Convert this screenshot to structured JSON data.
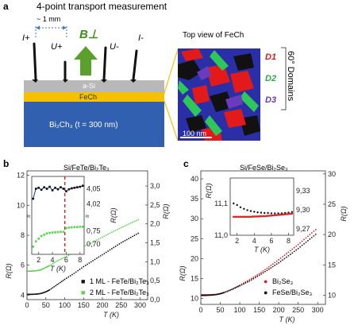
{
  "panel_a": {
    "label": "a",
    "title": "4-point transport measurement",
    "spacing": "~ 1 mm",
    "probes": [
      "I+",
      "U+",
      "U-",
      "I-"
    ],
    "field": "B⊥",
    "layers": [
      "a-Si",
      "FeCh",
      "Bi₂Ch₃ (t = 300 nm)"
    ],
    "top_view_title": "Top view of FeCh",
    "scale_bar": "100 nm",
    "domains": [
      "D1",
      "D2",
      "D3"
    ],
    "domain_note": "60° Domains",
    "colors": {
      "substrate": "#3060b0",
      "fech": "#f5c000",
      "asi": "#b8b8b8",
      "arrow": "#5aa02c",
      "d1": "#e21a1a",
      "d2": "#2ec85a",
      "d3": "#6a3bbd"
    }
  },
  "panel_b": {
    "label": "b",
    "title": "Si/FeTe/Bi₂Te₃"
  },
  "panel_c": {
    "label": "c",
    "title": "Si/FeSe/Bi₂Se₃"
  },
  "chart_data": [
    {
      "type": "scatter",
      "title": "Si/FeTe/Bi₂Te₃",
      "xlabel": "T (K)",
      "ylabel": "R(Ω)",
      "y2label": "R(Ω)",
      "xlim": [
        0,
        320
      ],
      "ylim": [
        3.7,
        12.3
      ],
      "y2lim": [
        0.0,
        3.4
      ],
      "xticks": [
        0,
        50,
        100,
        150,
        200,
        250,
        300
      ],
      "yticks": [
        4,
        6,
        8,
        10,
        12
      ],
      "y2ticks": [
        "0,0",
        "0,5",
        "1,0",
        "1,5",
        "2,0",
        "2,5",
        "3,0"
      ],
      "legend_position": "bottom-right",
      "series": [
        {
          "name": "1 ML - FeTe/Bi₂Te₃",
          "color": "#111111",
          "axis": "left",
          "x": [
            2,
            10,
            20,
            30,
            40,
            50,
            60,
            80,
            100,
            125,
            150,
            175,
            200,
            225,
            250,
            275,
            300
          ],
          "y": [
            4.05,
            4.05,
            4.06,
            4.08,
            4.13,
            4.22,
            4.35,
            4.7,
            5.05,
            5.45,
            5.9,
            6.3,
            6.7,
            7.1,
            7.5,
            7.85,
            8.2
          ]
        },
        {
          "name": "2 ML - FeTe/Bi₂Te₃",
          "color": "#55d84a",
          "axis": "right",
          "x": [
            2,
            10,
            20,
            30,
            40,
            50,
            60,
            80,
            100,
            125,
            150,
            175,
            200,
            225,
            250,
            275,
            300
          ],
          "y": [
            0.75,
            0.75,
            0.76,
            0.77,
            0.8,
            0.85,
            0.9,
            1.02,
            1.12,
            1.25,
            1.4,
            1.52,
            1.65,
            1.78,
            1.9,
            2.02,
            2.13
          ]
        }
      ],
      "inset": {
        "xlabel": "T (K)",
        "ylabel_right": "R(Ω)",
        "xlim": [
          1,
          8.6
        ],
        "xticks": [
          2,
          4,
          6,
          8
        ],
        "dashed_line_x": 5.8,
        "yticks_top": [
          "4,05",
          "4,02"
        ],
        "yticks_bottom": [
          "0,75",
          "0,70"
        ],
        "series": [
          {
            "name": "1 ML",
            "x": [
              1.2,
              1.6,
              2.0,
              2.4,
              2.8,
              3.2,
              3.6,
              4.0,
              4.4,
              4.8,
              5.2,
              5.6,
              6.0,
              6.4,
              6.8,
              7.2,
              7.6,
              8.0,
              8.4
            ],
            "y": [
              4.03,
              4.05,
              4.052,
              4.048,
              4.053,
              4.05,
              4.054,
              4.047,
              4.052,
              4.049,
              4.053,
              4.05,
              4.045,
              4.049,
              4.051,
              4.052,
              4.053,
              4.054,
              4.056
            ]
          },
          {
            "name": "2 ML",
            "x": [
              1.2,
              1.6,
              2.0,
              2.4,
              2.8,
              3.2,
              3.6,
              4.0,
              4.4,
              4.8,
              5.2,
              5.6,
              6.0,
              6.4,
              6.8,
              7.2,
              7.6,
              8.0,
              8.4
            ],
            "y": [
              0.69,
              0.71,
              0.72,
              0.73,
              0.735,
              0.74,
              0.742,
              0.743,
              0.744,
              0.745,
              0.746,
              0.746,
              0.76,
              0.762,
              0.763,
              0.764,
              0.764,
              0.765,
              0.765
            ]
          }
        ]
      }
    },
    {
      "type": "scatter",
      "title": "Si/FeSe/Bi₂Se₃",
      "xlabel": "T (K)",
      "ylabel": "R(Ω)",
      "y2label": "R(Ω)",
      "xlim": [
        0,
        320
      ],
      "ylim": [
        8.5,
        42
      ],
      "y2lim": [
        8.5,
        30.5
      ],
      "xticks": [
        0,
        50,
        100,
        150,
        200,
        250,
        300
      ],
      "yticks": [
        10,
        15,
        20,
        25,
        30,
        35,
        40
      ],
      "y2ticks": [
        10,
        15,
        20,
        25,
        30
      ],
      "legend_position": "bottom-right",
      "series": [
        {
          "name": "Bi₂Se₃",
          "color": "#e02020",
          "axis": "left",
          "x": [
            2,
            10,
            20,
            30,
            40,
            50,
            60,
            80,
            100,
            125,
            150,
            175,
            200,
            225,
            250,
            275,
            300
          ],
          "y": [
            10.9,
            10.9,
            10.9,
            10.92,
            11.0,
            11.2,
            11.5,
            12.3,
            13.3,
            14.7,
            16.2,
            17.9,
            19.7,
            21.6,
            23.5,
            25.6,
            27.7
          ]
        },
        {
          "name": "FeSe/Bi₂Se₃",
          "color": "#111111",
          "axis": "right",
          "x": [
            2,
            10,
            20,
            30,
            40,
            50,
            60,
            80,
            100,
            125,
            150,
            175,
            200,
            225,
            250,
            275,
            300
          ],
          "y": [
            9.98,
            9.98,
            10.0,
            10.05,
            10.12,
            10.25,
            10.45,
            10.95,
            11.55,
            12.35,
            13.3,
            14.3,
            15.35,
            16.5,
            17.7,
            19.0,
            20.3
          ]
        }
      ],
      "inset": {
        "xlabel": "T (K)",
        "ylabel_left": "R(Ω)",
        "xlim": [
          1.2,
          8.6
        ],
        "xticks": [
          2,
          4,
          6,
          8
        ],
        "ylim": [
          11.0,
          11.18
        ],
        "yticks": [
          "11,0",
          "11,1"
        ],
        "y2ticks": [
          "9,33",
          "9,30",
          "9,27"
        ],
        "series": [
          {
            "name": "FeSe/Bi₂Se₃",
            "x": [
              1.6,
              2.0,
              2.4,
              2.8,
              3.2,
              3.6,
              4.0,
              4.4,
              4.8,
              5.2,
              5.6,
              6.0,
              6.4,
              6.8,
              7.2,
              7.6,
              8.0,
              8.4
            ],
            "y": [
              11.1,
              11.095,
              11.088,
              11.083,
              11.079,
              11.076,
              11.074,
              11.072,
              11.071,
              11.07,
              11.07,
              11.069,
              11.069,
              11.069,
              11.069,
              11.07,
              11.071,
              11.073
            ]
          },
          {
            "name": "Bi₂Se₃",
            "x": [
              1.6,
              2.0,
              2.4,
              2.8,
              3.2,
              3.6,
              4.0,
              4.4,
              4.8,
              5.2,
              5.6,
              6.0,
              6.4,
              6.8,
              7.2,
              7.6,
              8.0,
              8.4
            ],
            "y": [
              11.058,
              11.058,
              11.058,
              11.058,
              11.058,
              11.058,
              11.059,
              11.059,
              11.06,
              11.06,
              11.061,
              11.062,
              11.063,
              11.064,
              11.065,
              11.066,
              11.067,
              11.068
            ]
          }
        ]
      }
    }
  ]
}
